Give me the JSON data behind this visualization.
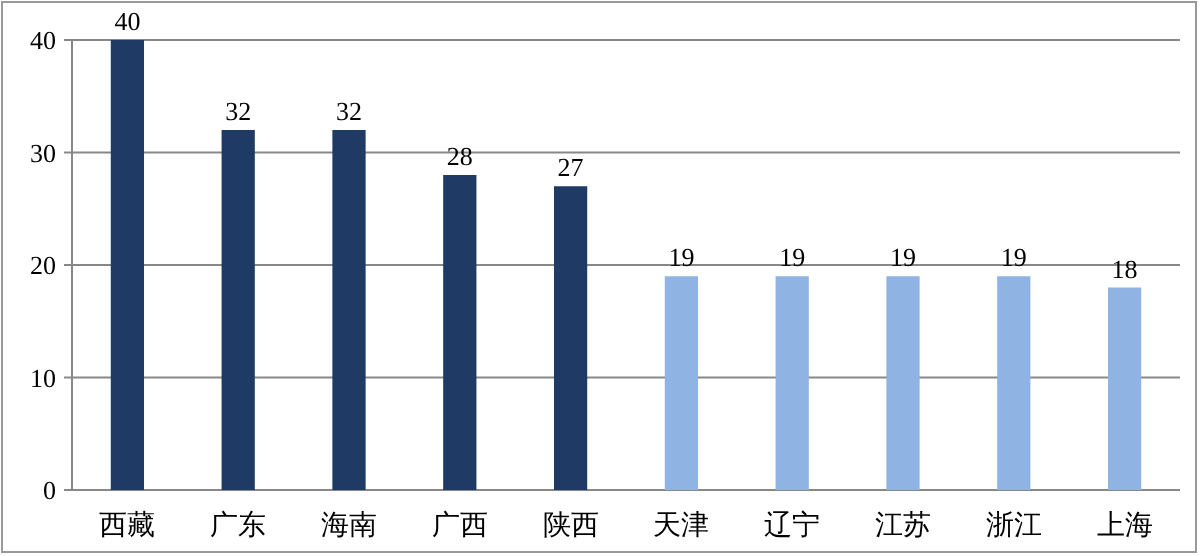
{
  "chart_data": {
    "type": "bar",
    "categories": [
      "西藏",
      "广东",
      "海南",
      "广西",
      "陕西",
      "天津",
      "辽宁",
      "江苏",
      "浙江",
      "上海"
    ],
    "values": [
      40,
      32,
      32,
      28,
      27,
      19,
      19,
      19,
      19,
      18
    ],
    "colors": [
      "#1f3a64",
      "#1f3a64",
      "#1f3a64",
      "#1f3a64",
      "#1f3a64",
      "#8fb4e3",
      "#8fb4e3",
      "#8fb4e3",
      "#8fb4e3",
      "#8fb4e3"
    ],
    "ylim": [
      0,
      40
    ],
    "yticks": [
      0,
      10,
      20,
      30,
      40
    ],
    "grid": "y",
    "data_labels": true
  }
}
